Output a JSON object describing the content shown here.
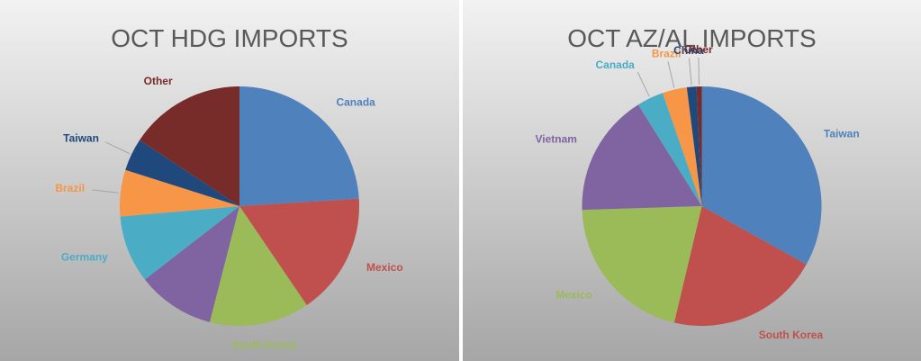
{
  "chart_data": [
    {
      "type": "pie",
      "title": "OCT HDG IMPORTS",
      "categories": [
        "Canada",
        "Mexico",
        "South Korea",
        null,
        "Germany",
        "Brazil",
        "Taiwan",
        "Other"
      ],
      "values": [
        24,
        16.5,
        13.5,
        10.5,
        9.1,
        6.3,
        4.4,
        15.7
      ],
      "colors": [
        "#4f81bd",
        "#c0504d",
        "#9bbb59",
        "#8064a2",
        "#4bacc6",
        "#f79646",
        "#1f497d",
        "#772c2a"
      ]
    },
    {
      "type": "pie",
      "title": "OCT AZ/AL IMPORTS",
      "categories": [
        "Taiwan",
        "South Korea",
        "Mexico",
        "Vietnam",
        "Canada",
        "Brazil",
        "China",
        "Other"
      ],
      "values": [
        33.1,
        20.6,
        20.8,
        16.6,
        3.6,
        3.3,
        1.3,
        0.7
      ],
      "colors": [
        "#4f81bd",
        "#c0504d",
        "#9bbb59",
        "#8064a2",
        "#4bacc6",
        "#f79646",
        "#1f497d",
        "#772c2a"
      ]
    }
  ]
}
